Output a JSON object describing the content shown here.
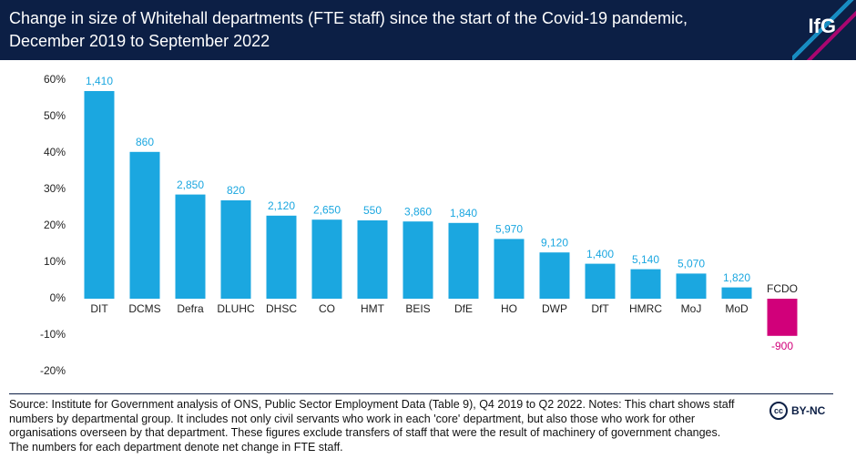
{
  "chart_data": {
    "type": "bar",
    "title": "Change in size of Whitehall departments (FTE staff) since the start of the Covid-19 pandemic, December 2019 to September 2022",
    "logo": "IfG",
    "categories": [
      "DIT",
      "DCMS",
      "Defra",
      "DLUHC",
      "DHSC",
      "CO",
      "HMT",
      "BEIS",
      "DfE",
      "HO",
      "DWP",
      "DfT",
      "HMRC",
      "MoJ",
      "MoD",
      "FCDO"
    ],
    "values": [
      57,
      40.3,
      28.6,
      27,
      22.8,
      21.7,
      21.5,
      21.2,
      20.8,
      16.4,
      12.7,
      9.6,
      8.1,
      6.9,
      3.1,
      -10.2
    ],
    "bar_labels": [
      "1,410",
      "860",
      "2,850",
      "820",
      "2,120",
      "2,650",
      "550",
      "3,860",
      "1,840",
      "5,970",
      "9,120",
      "1,400",
      "5,140",
      "5,070",
      "1,820",
      "-900"
    ],
    "color": "#1ba7e0",
    "negative_color": "#d1007a",
    "ylim": [
      -22,
      62
    ],
    "yticks": [
      {
        "value": -20,
        "label": "-20%"
      },
      {
        "value": -10,
        "label": "-10%"
      },
      {
        "value": 0,
        "label": "0%"
      },
      {
        "value": 10,
        "label": "10%"
      },
      {
        "value": 20,
        "label": "20%"
      },
      {
        "value": 30,
        "label": "30%"
      },
      {
        "value": 40,
        "label": "40%"
      },
      {
        "value": 50,
        "label": "50%"
      },
      {
        "value": 60,
        "label": "60%"
      }
    ],
    "grid": false,
    "source": "Source: Institute for Government analysis of ONS, Public Sector Employment Data (Table 9), Q4 2019 to Q2 2022. Notes: This chart shows staff numbers by departmental group. It includes not only civil servants who work in each 'core' department, but also those who work for other organisations overseen by that department. These figures exclude transfers of staff that were the result of machinery of government changes. The numbers for each department denote net change in FTE staff.",
    "license_icon": "cc",
    "license": "BY-NC"
  }
}
